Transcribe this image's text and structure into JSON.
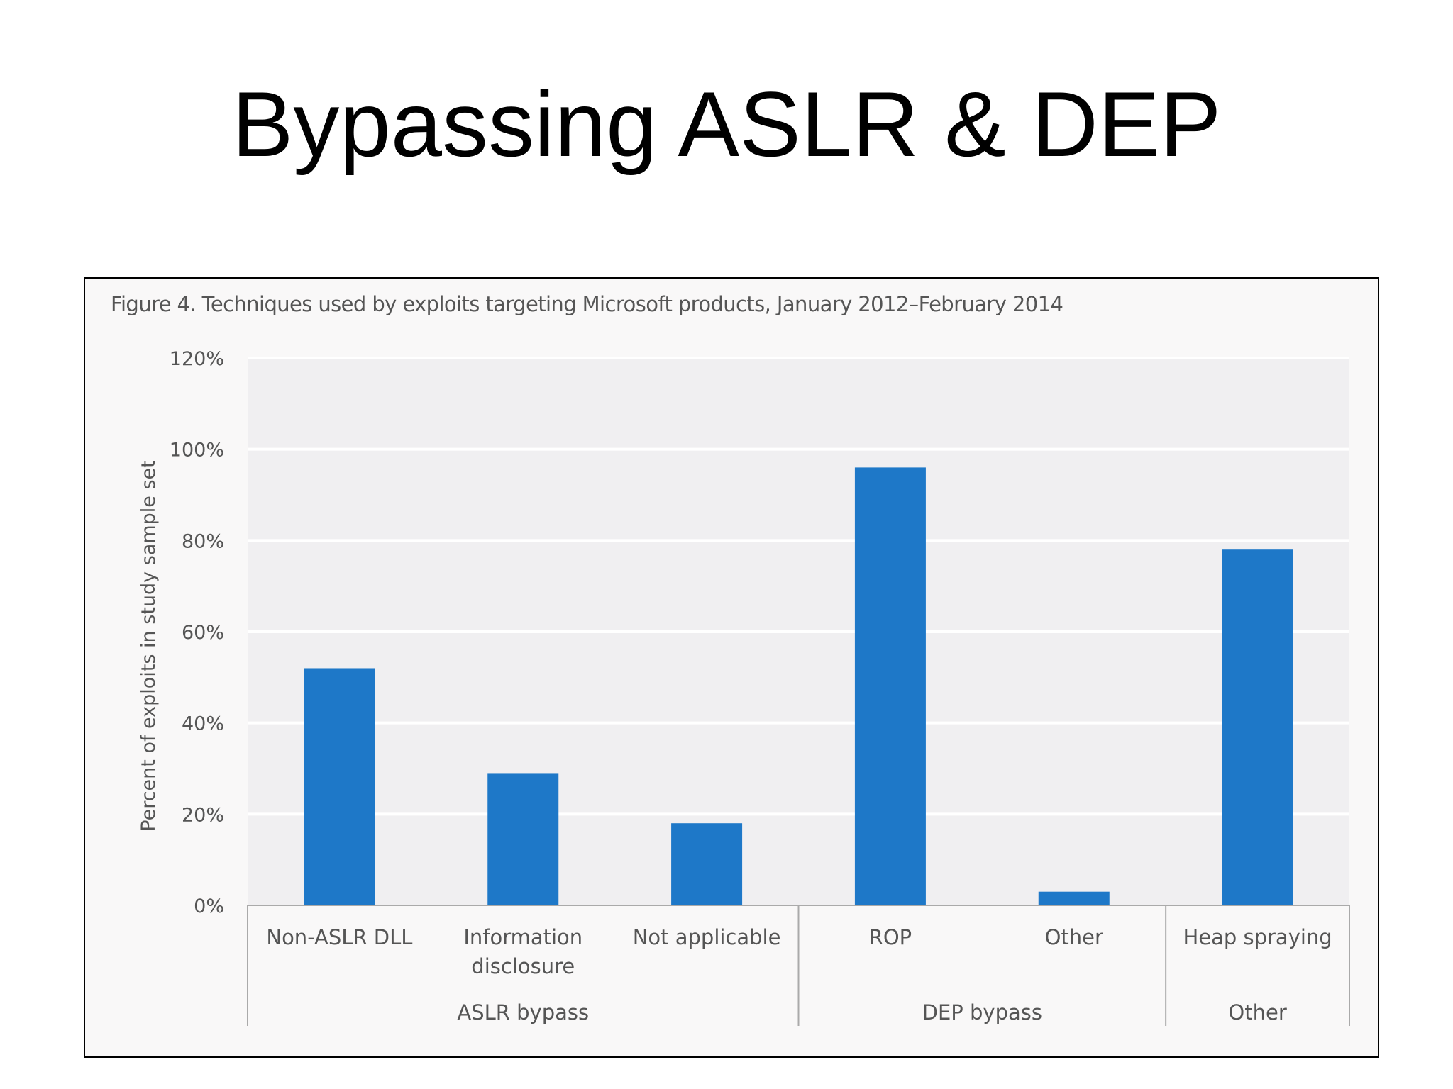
{
  "slide": {
    "title": "Bypassing ASLR & DEP"
  },
  "figure": {
    "caption": "Figure 4. Techniques used by exploits targeting Microsoft products, January 2012–February 2014"
  },
  "colors": {
    "bar": "#1e78c8",
    "plot_background": "#f0eff1",
    "gridline": "#ffffff",
    "text": "#555555"
  },
  "chart_data": {
    "type": "bar",
    "title": "",
    "xlabel": "",
    "ylabel": "Percent of exploits in study sample set",
    "ylim": [
      0,
      120
    ],
    "yticks": [
      "0%",
      "20%",
      "40%",
      "60%",
      "80%",
      "100%",
      "120%"
    ],
    "grid": true,
    "legend": "none",
    "categories": [
      [
        "Non-ASLR DLL"
      ],
      [
        "Information",
        "disclosure"
      ],
      [
        "Not applicable"
      ],
      [
        "ROP"
      ],
      [
        "Other"
      ],
      [
        "Heap spraying"
      ]
    ],
    "groups": [
      {
        "name": "ASLR bypass",
        "count": 3
      },
      {
        "name": "DEP bypass",
        "count": 2
      },
      {
        "name": "Other",
        "count": 1
      }
    ],
    "values": [
      52,
      29,
      18,
      96,
      3,
      78
    ]
  }
}
